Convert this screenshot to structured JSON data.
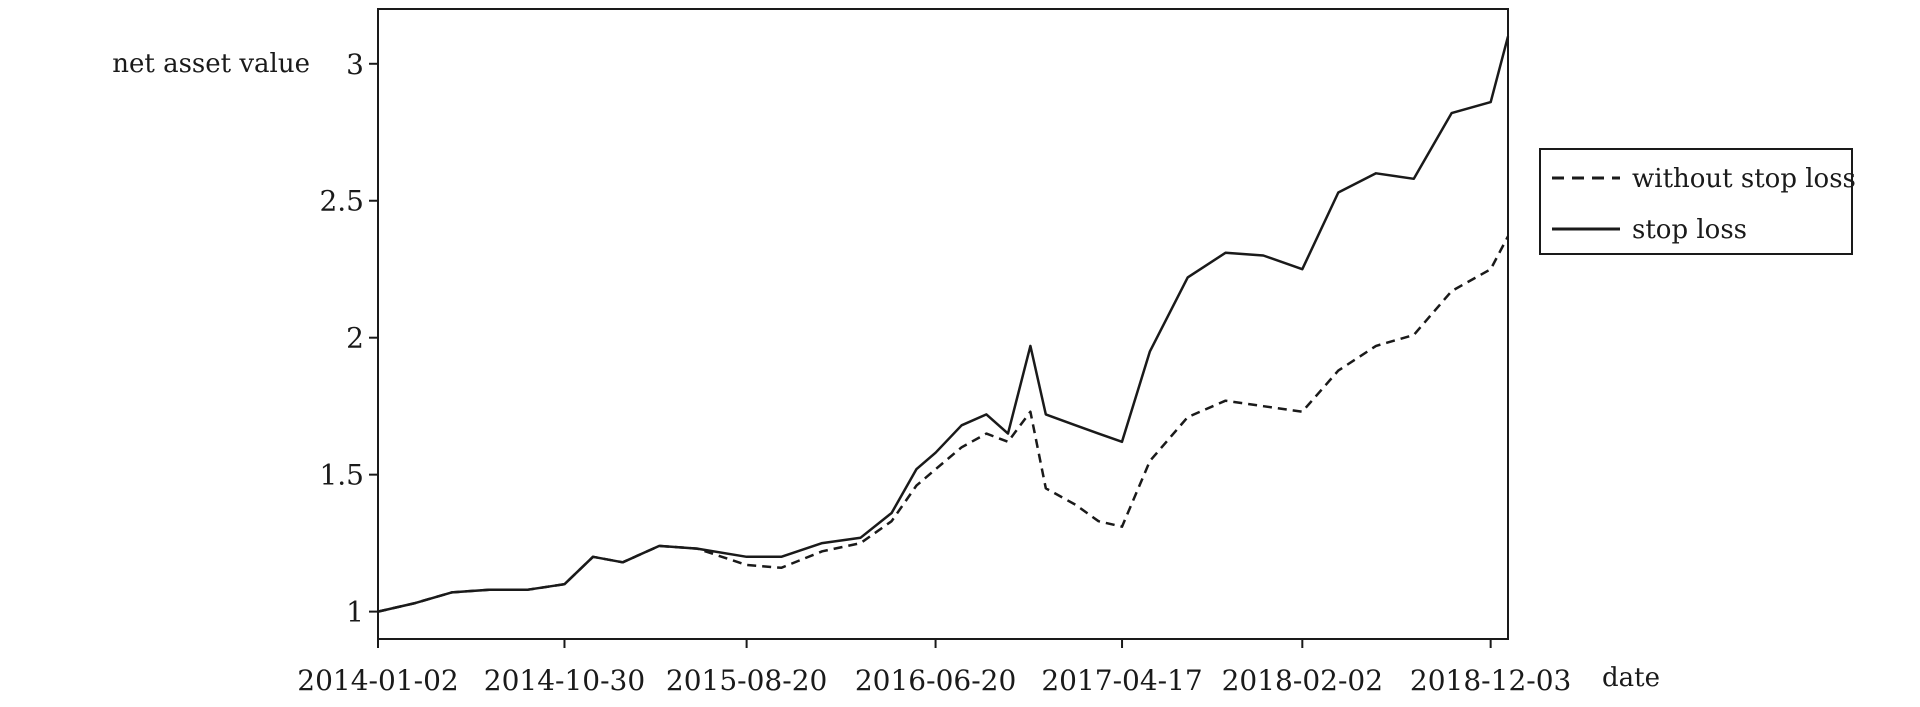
{
  "chart_data": {
    "type": "line",
    "title": "",
    "ylabel": "net asset value",
    "xlabel": "date",
    "x_ticks": [
      "2014-01-02",
      "2014-10-30",
      "2015-08-20",
      "2016-06-20",
      "2017-04-17",
      "2018-02-02",
      "2018-12-03"
    ],
    "y_ticks": [
      1,
      1.5,
      2,
      2.5,
      3
    ],
    "y_tick_labels": [
      "1",
      "1.5",
      "2",
      "2.5",
      "3"
    ],
    "xlim": [
      "2014-01-02",
      "2018-12-31"
    ],
    "ylim": [
      0.9,
      3.2
    ],
    "grid": false,
    "legend_position": "right",
    "series": [
      {
        "name": "without stop loss",
        "style": "dashed",
        "color": "#1a1a1a",
        "points": [
          [
            "2014-01-02",
            1.0
          ],
          [
            "2014-03-01",
            1.03
          ],
          [
            "2014-05-01",
            1.07
          ],
          [
            "2014-07-01",
            1.08
          ],
          [
            "2014-09-01",
            1.08
          ],
          [
            "2014-10-30",
            1.1
          ],
          [
            "2014-12-15",
            1.2
          ],
          [
            "2015-02-01",
            1.18
          ],
          [
            "2015-04-01",
            1.24
          ],
          [
            "2015-06-01",
            1.23
          ],
          [
            "2015-08-20",
            1.17
          ],
          [
            "2015-10-15",
            1.16
          ],
          [
            "2015-12-20",
            1.22
          ],
          [
            "2016-02-20",
            1.25
          ],
          [
            "2016-04-10",
            1.33
          ],
          [
            "2016-05-20",
            1.46
          ],
          [
            "2016-06-20",
            1.52
          ],
          [
            "2016-08-01",
            1.6
          ],
          [
            "2016-09-10",
            1.65
          ],
          [
            "2016-10-15",
            1.62
          ],
          [
            "2016-11-20",
            1.73
          ],
          [
            "2016-12-15",
            1.45
          ],
          [
            "2017-02-01",
            1.39
          ],
          [
            "2017-03-10",
            1.33
          ],
          [
            "2017-04-17",
            1.31
          ],
          [
            "2017-06-01",
            1.55
          ],
          [
            "2017-08-01",
            1.71
          ],
          [
            "2017-10-01",
            1.77
          ],
          [
            "2017-12-01",
            1.75
          ],
          [
            "2018-02-02",
            1.73
          ],
          [
            "2018-04-01",
            1.88
          ],
          [
            "2018-06-01",
            1.97
          ],
          [
            "2018-08-01",
            2.01
          ],
          [
            "2018-10-01",
            2.17
          ],
          [
            "2018-12-03",
            2.25
          ],
          [
            "2018-12-31",
            2.37
          ]
        ]
      },
      {
        "name": "stop loss",
        "style": "solid",
        "color": "#1a1a1a",
        "points": [
          [
            "2014-01-02",
            1.0
          ],
          [
            "2014-03-01",
            1.03
          ],
          [
            "2014-05-01",
            1.07
          ],
          [
            "2014-07-01",
            1.08
          ],
          [
            "2014-09-01",
            1.08
          ],
          [
            "2014-10-30",
            1.1
          ],
          [
            "2014-12-15",
            1.2
          ],
          [
            "2015-02-01",
            1.18
          ],
          [
            "2015-04-01",
            1.24
          ],
          [
            "2015-06-01",
            1.23
          ],
          [
            "2015-08-20",
            1.2
          ],
          [
            "2015-10-15",
            1.2
          ],
          [
            "2015-12-20",
            1.25
          ],
          [
            "2016-02-20",
            1.27
          ],
          [
            "2016-04-10",
            1.36
          ],
          [
            "2016-05-20",
            1.52
          ],
          [
            "2016-06-20",
            1.58
          ],
          [
            "2016-08-01",
            1.68
          ],
          [
            "2016-09-10",
            1.72
          ],
          [
            "2016-10-15",
            1.65
          ],
          [
            "2016-11-20",
            1.97
          ],
          [
            "2016-12-15",
            1.72
          ],
          [
            "2017-02-01",
            1.68
          ],
          [
            "2017-03-10",
            1.65
          ],
          [
            "2017-04-17",
            1.62
          ],
          [
            "2017-06-01",
            1.95
          ],
          [
            "2017-08-01",
            2.22
          ],
          [
            "2017-10-01",
            2.31
          ],
          [
            "2017-12-01",
            2.3
          ],
          [
            "2018-02-02",
            2.25
          ],
          [
            "2018-04-01",
            2.53
          ],
          [
            "2018-06-01",
            2.6
          ],
          [
            "2018-08-01",
            2.58
          ],
          [
            "2018-10-01",
            2.82
          ],
          [
            "2018-12-03",
            2.86
          ],
          [
            "2018-12-31",
            3.1
          ]
        ]
      }
    ]
  }
}
